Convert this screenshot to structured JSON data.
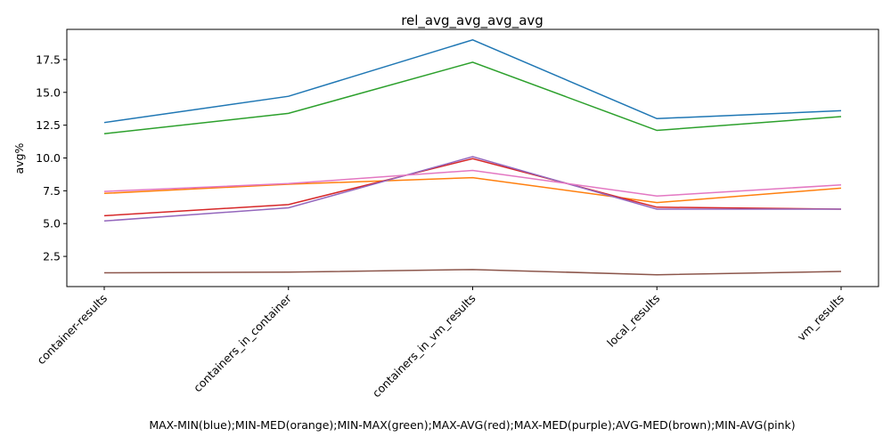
{
  "chart_data": {
    "type": "line",
    "title": "rel_avg_avg_avg_avg",
    "ylabel": "avg%",
    "xlabel": "MAX-MIN(blue);MIN-MED(orange);MIN-MAX(green);MAX-AVG(red);MAX-MED(purple);AVG-MED(brown);MIN-AVG(pink)",
    "categories": [
      "container-results",
      "containers_in_container",
      "containers_in_vm_results",
      "local_results",
      "vm_results"
    ],
    "yticks": [
      "2.5",
      "5.0",
      "7.5",
      "10.0",
      "12.5",
      "15.0",
      "17.5"
    ],
    "ylim": [
      0.2,
      19.8
    ],
    "grid": false,
    "series": [
      {
        "color": "#1f77b4",
        "values": [
          12.7,
          14.7,
          19.0,
          13.0,
          13.6
        ]
      },
      {
        "color": "#ff7f0e",
        "values": [
          7.3,
          8.0,
          8.5,
          6.6,
          7.7
        ]
      },
      {
        "color": "#2ca02c",
        "values": [
          11.85,
          13.4,
          17.3,
          12.1,
          13.15
        ]
      },
      {
        "color": "#d62728",
        "values": [
          5.6,
          6.45,
          9.95,
          6.25,
          6.1
        ]
      },
      {
        "color": "#9467bd",
        "values": [
          5.2,
          6.2,
          10.1,
          6.1,
          6.1
        ]
      },
      {
        "color": "#8c564b",
        "values": [
          1.25,
          1.3,
          1.5,
          1.1,
          1.35
        ]
      },
      {
        "color": "#e377c2",
        "values": [
          7.45,
          8.05,
          9.05,
          7.1,
          7.95
        ]
      }
    ]
  }
}
